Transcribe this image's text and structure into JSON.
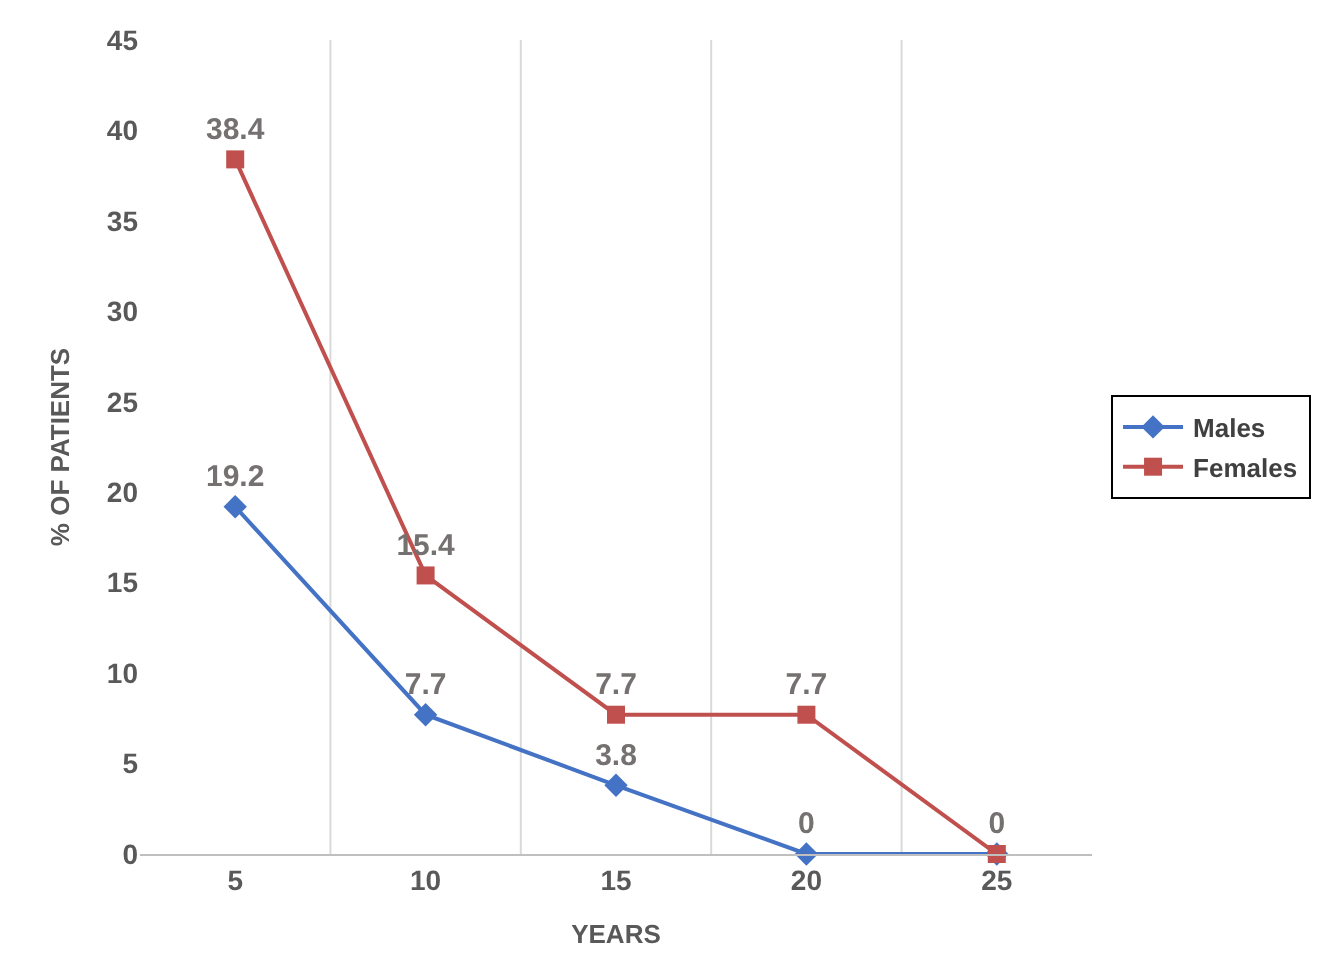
{
  "chart_data": {
    "type": "line",
    "xlabel": "YEARS",
    "ylabel": "% OF PATIENTS",
    "categories": [
      "5",
      "10",
      "15",
      "20",
      "25"
    ],
    "series": [
      {
        "name": "Males",
        "color": "#4472c4",
        "marker": "diamond",
        "values": [
          19.2,
          7.7,
          3.8,
          0,
          0
        ],
        "value_labels": [
          "19.2",
          "7.7",
          "3.8",
          "0",
          null
        ]
      },
      {
        "name": "Females",
        "color": "#c0504d",
        "marker": "square",
        "values": [
          38.4,
          15.4,
          7.7,
          7.7,
          0
        ],
        "value_labels": [
          "38.4",
          "15.4",
          "7.7",
          "7.7",
          "0"
        ]
      }
    ],
    "ylim": [
      0,
      45
    ],
    "yticks": [
      0,
      5,
      10,
      15,
      20,
      25,
      30,
      35,
      40,
      45
    ],
    "grid": "x",
    "legend": "right",
    "line_style": "solid"
  }
}
